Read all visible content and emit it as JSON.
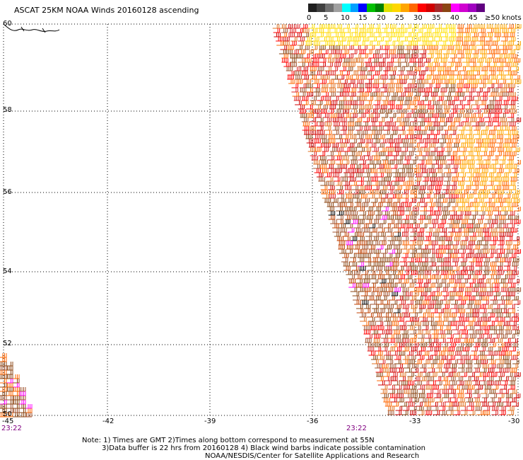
{
  "title": "ASCAT 25KM NOAA Winds 20160128 ascending",
  "colorbar": {
    "ticks": [
      "0",
      "5",
      "10",
      "15",
      "20",
      "25",
      "30",
      "35",
      "40",
      "45",
      "≥50 knots"
    ],
    "colors": [
      "#202020",
      "#404040",
      "#707070",
      "#a0a0a0",
      "#00ffff",
      "#00a0ff",
      "#0000ff",
      "#00c000",
      "#008000",
      "#e0e000",
      "#ffd700",
      "#ffa500",
      "#ff6600",
      "#ff0000",
      "#d00000",
      "#a52a2a",
      "#8b4513",
      "#ff00ff",
      "#d000d0",
      "#a000c0",
      "#600080"
    ]
  },
  "latitudes": [
    "60",
    "58",
    "56",
    "54",
    "52",
    "50"
  ],
  "longitudes": [
    "-45",
    "-42",
    "-39",
    "-36",
    "-33",
    "-30"
  ],
  "times": [
    "23:22",
    "23:22"
  ],
  "notes": [
    "Note: 1) Times are GMT 2)Times along bottom correspond to measurement at 55N",
    "3)Data buffer is 22 hrs from 20160128 4) Black wind barbs indicate possible contamination",
    "NOAA/NESDIS/Center for Satellite Applications and Research"
  ],
  "map": {
    "lat_range": [
      50,
      60
    ],
    "lon_range": [
      -45,
      -30
    ],
    "grid": "dotted",
    "swath_colors": [
      "#ff0000",
      "#dd2222",
      "#ff6600",
      "#e07020",
      "#a0522d",
      "#8b4513",
      "#d00000",
      "#ffa500",
      "#ffd700",
      "#ffe000",
      "#c04000",
      "#ff00ff",
      "#000000"
    ]
  }
}
